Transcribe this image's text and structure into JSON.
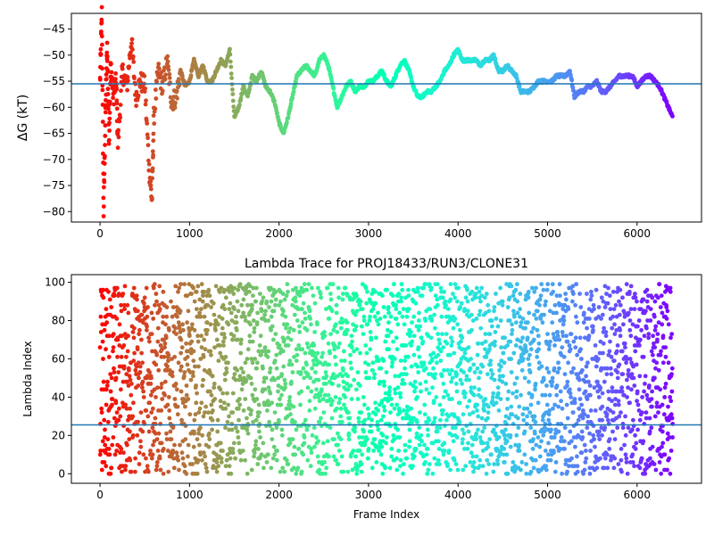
{
  "chart_data": [
    {
      "type": "scatter",
      "title": "",
      "xlabel": "",
      "ylabel": "ΔG (kT)",
      "xlim": [
        -320,
        6720
      ],
      "ylim": [
        -82,
        -42
      ],
      "xticks": [
        0,
        1000,
        2000,
        3000,
        4000,
        5000,
        6000
      ],
      "yticks": [
        -80,
        -75,
        -70,
        -65,
        -60,
        -55,
        -50,
        -45
      ],
      "hline": -55.5,
      "hline_color": "#1f77b4",
      "colormap": "rainbow (early frames red, late frames violet)",
      "trace": {
        "x": [
          0,
          20,
          40,
          60,
          80,
          100,
          120,
          150,
          180,
          200,
          250,
          300,
          350,
          400,
          450,
          500,
          550,
          580,
          600,
          650,
          700,
          750,
          800,
          850,
          900,
          950,
          1000,
          1050,
          1100,
          1150,
          1200,
          1250,
          1300,
          1350,
          1400,
          1450,
          1500,
          1550,
          1600,
          1650,
          1700,
          1750,
          1800,
          1850,
          1900,
          1950,
          2000,
          2050,
          2100,
          2150,
          2200,
          2250,
          2300,
          2350,
          2400,
          2450,
          2500,
          2550,
          2600,
          2650,
          2700,
          2750,
          2800,
          2850,
          2900,
          2950,
          3000,
          3050,
          3100,
          3150,
          3200,
          3250,
          3300,
          3350,
          3400,
          3450,
          3500,
          3550,
          3600,
          3650,
          3700,
          3750,
          3800,
          3850,
          3900,
          3950,
          4000,
          4050,
          4100,
          4150,
          4200,
          4250,
          4300,
          4350,
          4400,
          4450,
          4500,
          4550,
          4600,
          4650,
          4700,
          4750,
          4800,
          4850,
          4900,
          4950,
          5000,
          5050,
          5100,
          5150,
          5200,
          5250,
          5300,
          5350,
          5400,
          5450,
          5500,
          5550,
          5600,
          5650,
          5700,
          5750,
          5800,
          5850,
          5900,
          5950,
          6000,
          6050,
          6100,
          6150,
          6200,
          6250,
          6300,
          6350,
          6400
        ],
        "y": [
          -55,
          -42,
          -80,
          -62,
          -48,
          -66,
          -52,
          -58,
          -55,
          -67,
          -53,
          -56,
          -47,
          -58,
          -55,
          -56,
          -72,
          -78,
          -62,
          -53,
          -56,
          -51,
          -59,
          -58,
          -53,
          -56,
          -55,
          -51,
          -54,
          -52,
          -55,
          -55,
          -53,
          -51,
          -52,
          -49,
          -62,
          -60,
          -56,
          -58,
          -54,
          -55,
          -53,
          -56,
          -57,
          -59,
          -63,
          -65,
          -62,
          -58,
          -54,
          -53,
          -52,
          -53,
          -54,
          -51,
          -50,
          -52,
          -56,
          -60,
          -58,
          -56,
          -55,
          -57,
          -56,
          -56,
          -55,
          -55,
          -54,
          -53,
          -55,
          -56,
          -54,
          -52,
          -51,
          -53,
          -56,
          -58,
          -58,
          -57,
          -57,
          -56,
          -55,
          -53,
          -52,
          -50,
          -49,
          -51,
          -51,
          -51,
          -51,
          -52,
          -51,
          -51,
          -50,
          -53,
          -53,
          -52,
          -53,
          -54,
          -57,
          -57,
          -57,
          -56,
          -55,
          -55,
          -55,
          -55,
          -54,
          -54,
          -54,
          -53,
          -58,
          -57,
          -57,
          -56,
          -56,
          -55,
          -57,
          -57,
          -56,
          -55,
          -54,
          -54,
          -54,
          -54,
          -56,
          -55,
          -54,
          -54,
          -55,
          -56,
          -58,
          -60,
          -62
        ]
      }
    },
    {
      "type": "scatter",
      "title": "Lambda Trace for PROJ18433/RUN3/CLONE31",
      "xlabel": "Frame Index",
      "ylabel": "Lambda Index",
      "xlim": [
        -320,
        6720
      ],
      "ylim": [
        -5,
        104
      ],
      "xticks": [
        0,
        1000,
        2000,
        3000,
        4000,
        5000,
        6000
      ],
      "yticks": [
        0,
        20,
        40,
        60,
        80,
        100
      ],
      "hline": 25.5,
      "hline_color": "#1f77b4",
      "colormap": "rainbow (early frames red, late frames violet)",
      "point_count_approx": 6400,
      "value_range": [
        0,
        99
      ]
    }
  ]
}
